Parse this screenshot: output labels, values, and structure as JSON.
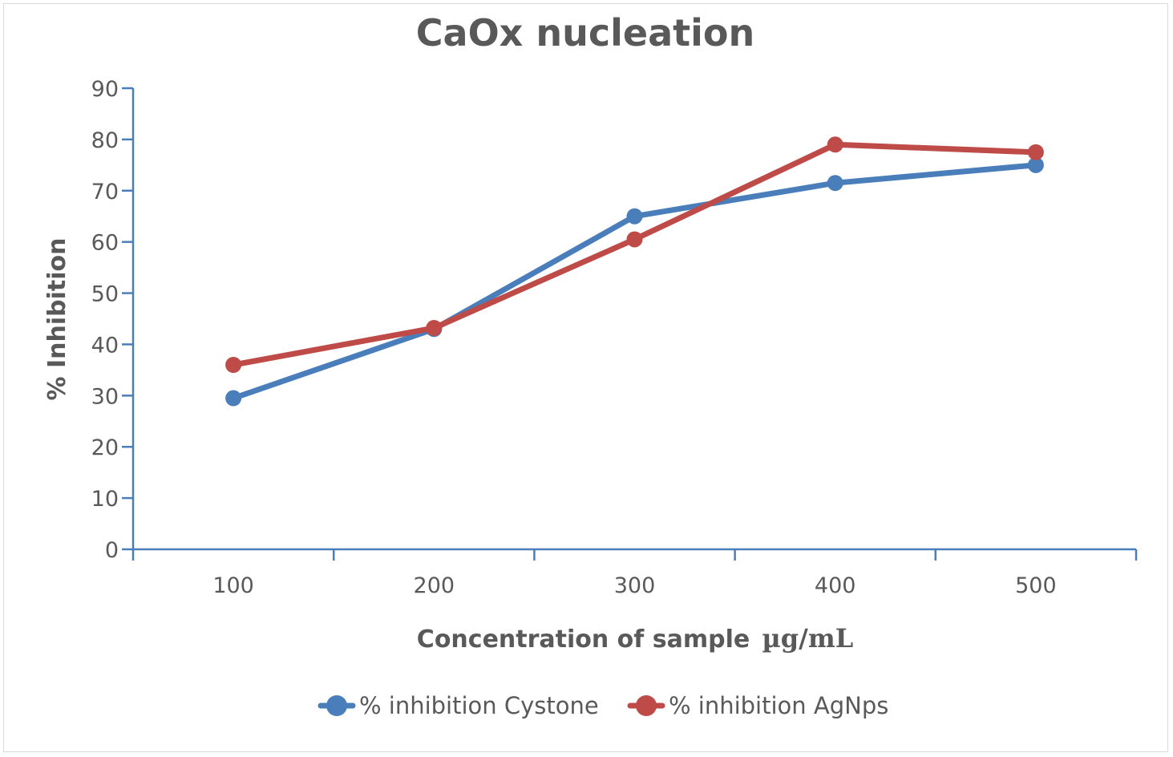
{
  "chart_data": {
    "type": "line",
    "title": "CaOx nucleation",
    "xlabel": "Concentration of sample",
    "xlabel_unit": "µg/mL",
    "ylabel": "% Inhibition",
    "categories": [
      "100",
      "200",
      "300",
      "400",
      "500"
    ],
    "ylim": [
      0,
      90
    ],
    "yticks": [
      0,
      10,
      20,
      30,
      40,
      50,
      60,
      70,
      80,
      90
    ],
    "grid": false,
    "legend_position": "bottom",
    "series": [
      {
        "name": "% inhibition Cystone",
        "color": "#4a7ebb",
        "values": [
          29.5,
          43,
          65,
          71.5,
          75
        ]
      },
      {
        "name": "% inhibition AgNps",
        "color": "#be4b48",
        "values": [
          36,
          43.2,
          60.5,
          79,
          77.5
        ]
      }
    ],
    "axis_color": "#4a7ebb"
  }
}
